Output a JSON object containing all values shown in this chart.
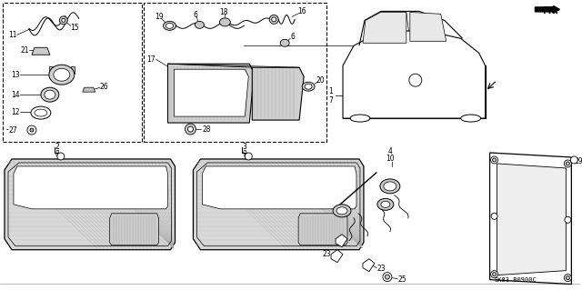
{
  "bg": "#ffffff",
  "lc": "#000000",
  "diagram_code": "SK83-B0900C",
  "fr_label": "FR.",
  "hatch_color": "#aaaaaa",
  "gray_fill": "#d4d4d4",
  "light_gray": "#e8e8e8"
}
